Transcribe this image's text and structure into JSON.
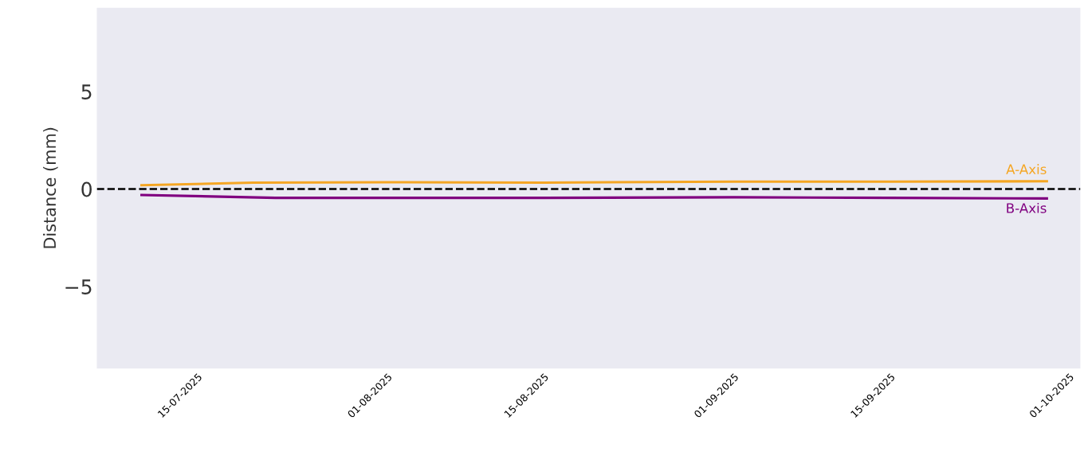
{
  "chart_data": {
    "type": "line",
    "ylabel": "Distance (mm)",
    "xlim": [
      "2025-07-06",
      "2025-10-02"
    ],
    "xticks": [
      {
        "value": "2025-07-15",
        "label": "15-07-2025"
      },
      {
        "value": "2025-08-01",
        "label": "01-08-2025"
      },
      {
        "value": "2025-08-15",
        "label": "15-08-2025"
      },
      {
        "value": "2025-09-01",
        "label": "01-09-2025"
      },
      {
        "value": "2025-09-15",
        "label": "15-09-2025"
      },
      {
        "value": "2025-10-01",
        "label": "01-10-2025"
      }
    ],
    "ylim": [
      -9.2,
      9.3
    ],
    "yticks": [
      {
        "value": -5,
        "label": "−5"
      },
      0,
      5
    ],
    "grid": false,
    "legend": false,
    "line_style": "solid",
    "marker": "none",
    "ref_lines": [
      {
        "axis": "y",
        "value": 0,
        "color": "#000000",
        "line_style": "dashed"
      }
    ],
    "series": [
      {
        "name": "A-Axis",
        "color": "#f5a623",
        "x": [
          "2025-07-10",
          "2025-07-20",
          "2025-08-01",
          "2025-08-15",
          "2025-09-01",
          "2025-09-15",
          "2025-09-29"
        ],
        "values": [
          0.2,
          0.33,
          0.35,
          0.33,
          0.38,
          0.38,
          0.4
        ]
      },
      {
        "name": "B-Axis",
        "color": "#800080",
        "x": [
          "2025-07-10",
          "2025-07-22",
          "2025-08-15",
          "2025-09-01",
          "2025-09-15",
          "2025-09-29"
        ],
        "values": [
          -0.3,
          -0.45,
          -0.45,
          -0.42,
          -0.45,
          -0.48
        ]
      }
    ]
  }
}
